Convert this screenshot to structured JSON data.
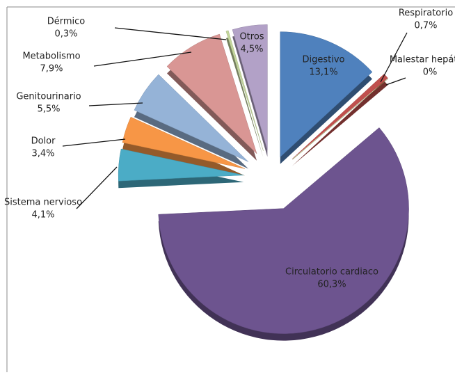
{
  "chart_data": {
    "type": "pie",
    "categories": [
      "Digestivo",
      "Respiratorio",
      "Malestar hepático",
      "Circulatorio cardiaco",
      "Sistema nervioso",
      "Dolor",
      "Genitourinario",
      "Metabolismo",
      "Dérmico",
      "Otros"
    ],
    "values": [
      13.1,
      0.7,
      0,
      60.3,
      4.1,
      3.4,
      5.5,
      7.9,
      0.3,
      4.5
    ],
    "value_labels": [
      "13,1%",
      "0,7%",
      "0%",
      "60,3%",
      "4,1%",
      "3,4%",
      "5,5%",
      "7,9%",
      "0,3%",
      "4,5%"
    ],
    "colors": [
      "#4f81bd",
      "#c0504d",
      "#9bbb59",
      "#6d548f",
      "#4bacc6",
      "#f79646",
      "#95b3d7",
      "#d99694",
      "#c3d69b",
      "#b2a1c7"
    ]
  }
}
